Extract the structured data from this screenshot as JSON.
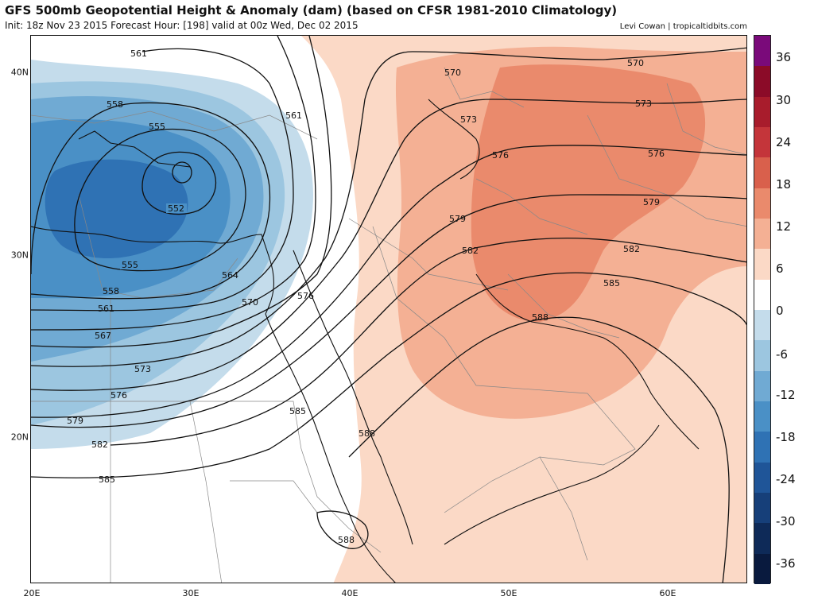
{
  "header": {
    "title": "GFS 500mb Geopotential Height & Anomaly (dam) (based on CFSR 1981-2010 Climatology)",
    "subtitle": "Init: 18z Nov 23 2015   Forecast Hour: [198]   valid at 00z Wed, Dec 02 2015",
    "credit": "Levi Cowan | tropicaltidbits.com"
  },
  "axes": {
    "lat_labels": [
      {
        "label": "40N",
        "value": 40
      },
      {
        "label": "30N",
        "value": 30
      },
      {
        "label": "20N",
        "value": 20
      }
    ],
    "lon_labels": [
      {
        "label": "20E",
        "value": 20
      },
      {
        "label": "30E",
        "value": 30
      },
      {
        "label": "40E",
        "value": 40
      },
      {
        "label": "50E",
        "value": 50
      },
      {
        "label": "60E",
        "value": 60
      }
    ]
  },
  "colorbar": {
    "labels": [
      "36",
      "30",
      "24",
      "18",
      "12",
      "6",
      "0",
      "-6",
      "-12",
      "-18",
      "-24",
      "-30",
      "-36"
    ],
    "colors": [
      "#7a0a7a",
      "#8b0b28",
      "#a81c2c",
      "#c4353a",
      "#d9604c",
      "#ea8a6c",
      "#f4b094",
      "#fbd9c6",
      "#ffffff",
      "#c4dceb",
      "#9cc6e0",
      "#70aad3",
      "#4a90c6",
      "#2f72b4",
      "#1f5598",
      "#163f79",
      "#0e2a58",
      "#091a3e"
    ]
  },
  "contour_labels": {
    "c552": "552",
    "c555": "555",
    "c558": "558",
    "c561": "561",
    "c564": "564",
    "c567": "567",
    "c570": "570",
    "c573": "573",
    "c576": "576",
    "c579": "579",
    "c582": "582",
    "c585": "585",
    "c588": "588"
  }
}
